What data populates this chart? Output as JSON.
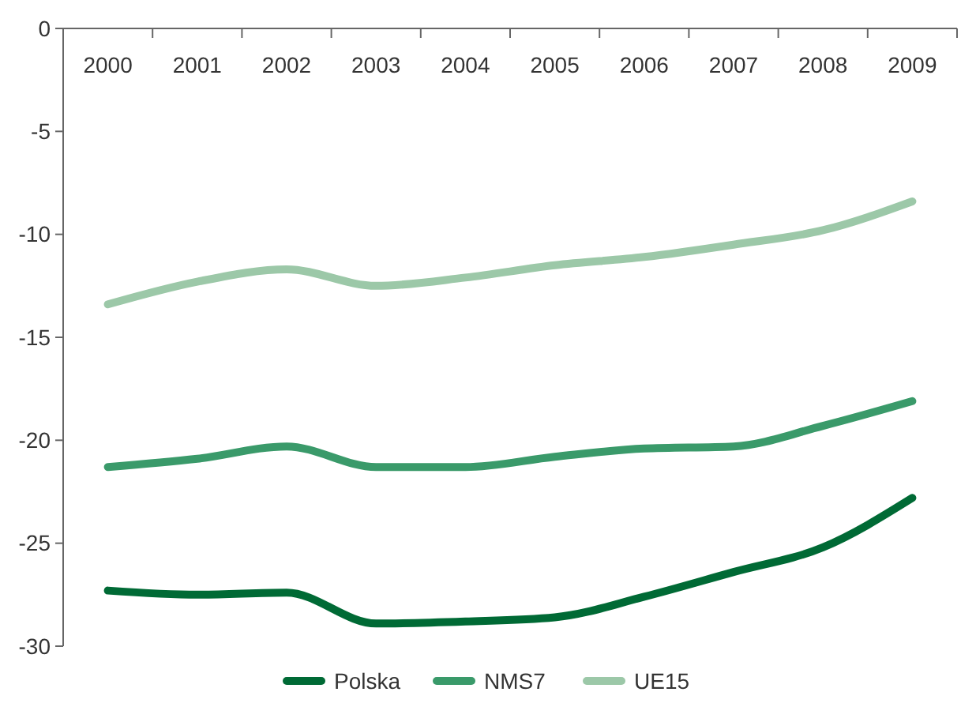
{
  "chart_data": {
    "type": "line",
    "categories": [
      "2000",
      "2001",
      "2002",
      "2003",
      "2004",
      "2005",
      "2006",
      "2007",
      "2008",
      "2009"
    ],
    "series": [
      {
        "name": "Polska",
        "color": "#006a35",
        "values": [
          -27.3,
          -27.5,
          -27.4,
          -28.9,
          -28.8,
          -28.6,
          -27.6,
          -26.4,
          -25.2,
          -22.8
        ]
      },
      {
        "name": "NMS7",
        "color": "#3a9a6a",
        "values": [
          -21.3,
          -20.9,
          -20.3,
          -21.3,
          -21.3,
          -20.8,
          -20.4,
          -20.3,
          -19.3,
          -18.1
        ]
      },
      {
        "name": "UE15",
        "color": "#9cc8a8",
        "values": [
          -13.4,
          -12.3,
          -11.7,
          -12.5,
          -12.1,
          -11.5,
          -11.1,
          -10.5,
          -9.8,
          -8.4
        ]
      }
    ],
    "ylim": [
      -30,
      0
    ],
    "yticks": [
      0,
      -5,
      -10,
      -15,
      -20,
      -25,
      -30
    ],
    "legend": "bottom",
    "marker": "none",
    "line_style": "solid"
  }
}
